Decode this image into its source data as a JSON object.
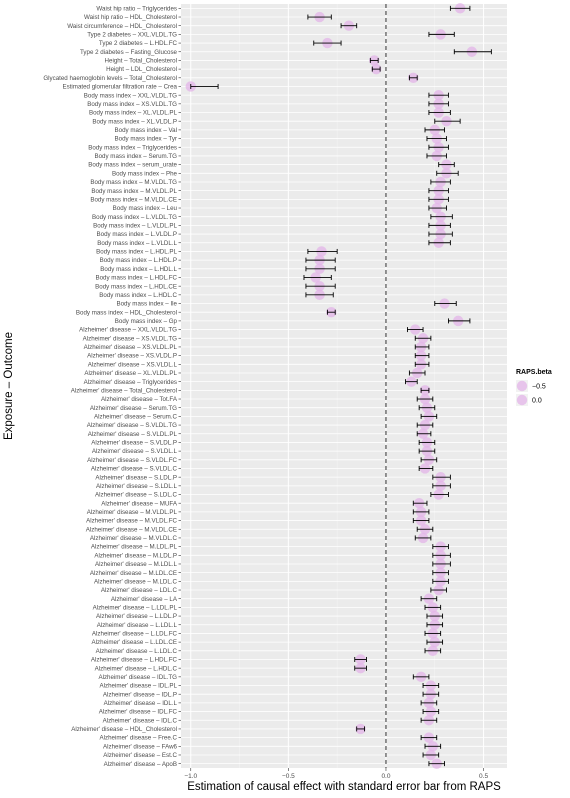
{
  "chart_data": {
    "type": "forest",
    "xlabel": "Estimation of causal effect with standard error bar from RAPS",
    "ylabel": "Exposure – Outcome",
    "xlim": [
      -1.05,
      0.62
    ],
    "xticks": [
      -1.0,
      -0.5,
      0.0,
      0.5
    ],
    "xtick_labels": [
      "−1.0",
      "−0.5",
      "0.0",
      "0.5"
    ],
    "reference_line_x": 0,
    "reference_line_style": "dashed",
    "grid": true,
    "legend": {
      "title": "RAPS.beta",
      "placement": "right",
      "entries": [
        {
          "label": "−0.5",
          "value": -0.5
        },
        {
          "label": "0.0",
          "value": 0.0
        }
      ]
    },
    "rows": [
      {
        "label": "Waist hip ratio  –  Triglycerides",
        "beta": 0.38,
        "lo": 0.33,
        "hi": 0.43
      },
      {
        "label": "Waist hip ratio  –  HDL_Cholesterol",
        "beta": -0.34,
        "lo": -0.4,
        "hi": -0.28
      },
      {
        "label": "Waist circumference  –  HDL_Cholesterol",
        "beta": -0.19,
        "lo": -0.23,
        "hi": -0.15
      },
      {
        "label": "Type 2 diabetes  –  XXL.VLDL.TG",
        "beta": 0.28,
        "lo": 0.22,
        "hi": 0.35
      },
      {
        "label": "Type 2 diabetes  –  L.HDL.FC",
        "beta": -0.3,
        "lo": -0.37,
        "hi": -0.23
      },
      {
        "label": "Type 2 diabetes  –  Fasting_Glucose",
        "beta": 0.44,
        "lo": 0.35,
        "hi": 0.54
      },
      {
        "label": "Height  –  Total_Cholesterol",
        "beta": -0.06,
        "lo": -0.08,
        "hi": -0.04
      },
      {
        "label": "Height  –  LDL_Cholesterol",
        "beta": -0.05,
        "lo": -0.07,
        "hi": -0.03
      },
      {
        "label": "Glycated haemoglobin levels  –  Total_Cholesterol",
        "beta": 0.14,
        "lo": 0.12,
        "hi": 0.16
      },
      {
        "label": "Estimated glomerular filtration rate  –  Crea",
        "beta": -1.0,
        "lo": -1.0,
        "hi": -0.86
      },
      {
        "label": "Body mass index  –  XXL.VLDL.TG",
        "beta": 0.27,
        "lo": 0.22,
        "hi": 0.32
      },
      {
        "label": "Body mass index  –  XS.VLDL.TG",
        "beta": 0.27,
        "lo": 0.22,
        "hi": 0.32
      },
      {
        "label": "Body mass index  –  XL.VLDL.PL",
        "beta": 0.27,
        "lo": 0.22,
        "hi": 0.33
      },
      {
        "label": "Body mass index  –  XL.VLDL.P",
        "beta": 0.31,
        "lo": 0.25,
        "hi": 0.38
      },
      {
        "label": "Body mass index  –  Val",
        "beta": 0.25,
        "lo": 0.2,
        "hi": 0.3
      },
      {
        "label": "Body mass index  –  Tyr",
        "beta": 0.26,
        "lo": 0.21,
        "hi": 0.31
      },
      {
        "label": "Body mass index  –  Triglycerides",
        "beta": 0.27,
        "lo": 0.22,
        "hi": 0.32
      },
      {
        "label": "Body mass index  –  Serum.TG",
        "beta": 0.26,
        "lo": 0.21,
        "hi": 0.31
      },
      {
        "label": "Body mass index  –  serum_urate",
        "beta": 0.31,
        "lo": 0.27,
        "hi": 0.35
      },
      {
        "label": "Body mass index  –  Phe",
        "beta": 0.31,
        "lo": 0.26,
        "hi": 0.37
      },
      {
        "label": "Body mass index  –  M.VLDL.TG",
        "beta": 0.28,
        "lo": 0.23,
        "hi": 0.33
      },
      {
        "label": "Body mass index  –  M.VLDL.PL",
        "beta": 0.27,
        "lo": 0.22,
        "hi": 0.32
      },
      {
        "label": "Body mass index  –  M.VLDL.CE",
        "beta": 0.27,
        "lo": 0.22,
        "hi": 0.32
      },
      {
        "label": "Body mass index  –  Leu",
        "beta": 0.26,
        "lo": 0.22,
        "hi": 0.31
      },
      {
        "label": "Body mass index  –  L.VLDL.TG",
        "beta": 0.28,
        "lo": 0.23,
        "hi": 0.34
      },
      {
        "label": "Body mass index  –  L.VLDL.PL",
        "beta": 0.28,
        "lo": 0.22,
        "hi": 0.33
      },
      {
        "label": "Body mass index  –  L.VLDL.P",
        "beta": 0.28,
        "lo": 0.22,
        "hi": 0.34
      },
      {
        "label": "Body mass index  –  L.VLDL.L",
        "beta": 0.27,
        "lo": 0.22,
        "hi": 0.33
      },
      {
        "label": "Body mass index  –  L.HDL.PL",
        "beta": -0.33,
        "lo": -0.4,
        "hi": -0.25
      },
      {
        "label": "Body mass index  –  L.HDL.P",
        "beta": -0.34,
        "lo": -0.41,
        "hi": -0.26
      },
      {
        "label": "Body mass index  –  L.HDL.L",
        "beta": -0.34,
        "lo": -0.41,
        "hi": -0.26
      },
      {
        "label": "Body mass index  –  L.HDL.FC",
        "beta": -0.36,
        "lo": -0.42,
        "hi": -0.28
      },
      {
        "label": "Body mass index  –  L.HDL.CE",
        "beta": -0.34,
        "lo": -0.41,
        "hi": -0.26
      },
      {
        "label": "Body mass index  –  L.HDL.C",
        "beta": -0.34,
        "lo": -0.41,
        "hi": -0.27
      },
      {
        "label": "Body mass index  –  Ile",
        "beta": 0.3,
        "lo": 0.25,
        "hi": 0.36
      },
      {
        "label": "Body mass index  –  HDL_Cholesterol",
        "beta": -0.28,
        "lo": -0.3,
        "hi": -0.26
      },
      {
        "label": "Body mass index  –  Gp",
        "beta": 0.37,
        "lo": 0.32,
        "hi": 0.43
      },
      {
        "label": "Alzheimer' disease  –  XXL.VLDL.TG",
        "beta": 0.15,
        "lo": 0.11,
        "hi": 0.19
      },
      {
        "label": "Alzheimer' disease  –  XS.VLDL.TG",
        "beta": 0.19,
        "lo": 0.15,
        "hi": 0.23
      },
      {
        "label": "Alzheimer' disease  –  XS.VLDL.PL",
        "beta": 0.18,
        "lo": 0.15,
        "hi": 0.22
      },
      {
        "label": "Alzheimer' disease  –  XS.VLDL.P",
        "beta": 0.18,
        "lo": 0.15,
        "hi": 0.22
      },
      {
        "label": "Alzheimer' disease  –  XS.VLDL.L",
        "beta": 0.18,
        "lo": 0.15,
        "hi": 0.22
      },
      {
        "label": "Alzheimer' disease  –  XL.VLDL.PL",
        "beta": 0.16,
        "lo": 0.12,
        "hi": 0.2
      },
      {
        "label": "Alzheimer' disease  –  Triglycerides",
        "beta": 0.13,
        "lo": 0.1,
        "hi": 0.16
      },
      {
        "label": "Alzheimer' disease  –  Total_Cholesterol",
        "beta": 0.2,
        "lo": 0.18,
        "hi": 0.22
      },
      {
        "label": "Alzheimer' disease  –  Tot.FA",
        "beta": 0.2,
        "lo": 0.16,
        "hi": 0.24
      },
      {
        "label": "Alzheimer' disease  –  Serum.TG",
        "beta": 0.21,
        "lo": 0.17,
        "hi": 0.25
      },
      {
        "label": "Alzheimer' disease  –  Serum.C",
        "beta": 0.22,
        "lo": 0.18,
        "hi": 0.26
      },
      {
        "label": "Alzheimer' disease  –  S.VLDL.TG",
        "beta": 0.2,
        "lo": 0.16,
        "hi": 0.24
      },
      {
        "label": "Alzheimer' disease  –  S.VLDL.PL",
        "beta": 0.19,
        "lo": 0.16,
        "hi": 0.23
      },
      {
        "label": "Alzheimer' disease  –  S.VLDL.P",
        "beta": 0.21,
        "lo": 0.17,
        "hi": 0.25
      },
      {
        "label": "Alzheimer' disease  –  S.VLDL.L",
        "beta": 0.21,
        "lo": 0.17,
        "hi": 0.25
      },
      {
        "label": "Alzheimer' disease  –  S.VLDL.FC",
        "beta": 0.22,
        "lo": 0.18,
        "hi": 0.26
      },
      {
        "label": "Alzheimer' disease  –  S.VLDL.C",
        "beta": 0.2,
        "lo": 0.17,
        "hi": 0.24
      },
      {
        "label": "Alzheimer' disease  –  S.LDL.P",
        "beta": 0.28,
        "lo": 0.24,
        "hi": 0.33
      },
      {
        "label": "Alzheimer' disease  –  S.LDL.L",
        "beta": 0.28,
        "lo": 0.24,
        "hi": 0.33
      },
      {
        "label": "Alzheimer' disease  –  S.LDL.C",
        "beta": 0.27,
        "lo": 0.23,
        "hi": 0.32
      },
      {
        "label": "Alzheimer' disease  –  MUFA",
        "beta": 0.17,
        "lo": 0.14,
        "hi": 0.21
      },
      {
        "label": "Alzheimer' disease  –  M.VLDL.PL",
        "beta": 0.18,
        "lo": 0.14,
        "hi": 0.22
      },
      {
        "label": "Alzheimer' disease  –  M.VLDL.FC",
        "beta": 0.18,
        "lo": 0.14,
        "hi": 0.22
      },
      {
        "label": "Alzheimer' disease  –  M.VLDL.CE",
        "beta": 0.2,
        "lo": 0.16,
        "hi": 0.24
      },
      {
        "label": "Alzheimer' disease  –  M.VLDL.C",
        "beta": 0.19,
        "lo": 0.15,
        "hi": 0.23
      },
      {
        "label": "Alzheimer' disease  –  M.LDL.PL",
        "beta": 0.28,
        "lo": 0.24,
        "hi": 0.32
      },
      {
        "label": "Alzheimer' disease  –  M.LDL.P",
        "beta": 0.28,
        "lo": 0.24,
        "hi": 0.33
      },
      {
        "label": "Alzheimer' disease  –  M.LDL.L",
        "beta": 0.28,
        "lo": 0.24,
        "hi": 0.33
      },
      {
        "label": "Alzheimer' disease  –  M.LDL.CE",
        "beta": 0.28,
        "lo": 0.24,
        "hi": 0.32
      },
      {
        "label": "Alzheimer' disease  –  M.LDL.C",
        "beta": 0.28,
        "lo": 0.24,
        "hi": 0.32
      },
      {
        "label": "Alzheimer' disease  –  LDL.C",
        "beta": 0.27,
        "lo": 0.23,
        "hi": 0.31
      },
      {
        "label": "Alzheimer' disease  –  LA",
        "beta": 0.22,
        "lo": 0.18,
        "hi": 0.26
      },
      {
        "label": "Alzheimer' disease  –  L.LDL.PL",
        "beta": 0.24,
        "lo": 0.2,
        "hi": 0.28
      },
      {
        "label": "Alzheimer' disease  –  L.LDL.P",
        "beta": 0.25,
        "lo": 0.21,
        "hi": 0.29
      },
      {
        "label": "Alzheimer' disease  –  L.LDL.L",
        "beta": 0.25,
        "lo": 0.21,
        "hi": 0.29
      },
      {
        "label": "Alzheimer' disease  –  L.LDL.FC",
        "beta": 0.24,
        "lo": 0.2,
        "hi": 0.28
      },
      {
        "label": "Alzheimer' disease  –  L.LDL.CE",
        "beta": 0.25,
        "lo": 0.21,
        "hi": 0.29
      },
      {
        "label": "Alzheimer' disease  –  L.LDL.C",
        "beta": 0.24,
        "lo": 0.2,
        "hi": 0.28
      },
      {
        "label": "Alzheimer' disease  –  L.HDL.FC",
        "beta": -0.13,
        "lo": -0.16,
        "hi": -0.1
      },
      {
        "label": "Alzheimer' disease  –  L.HDL.C",
        "beta": -0.13,
        "lo": -0.16,
        "hi": -0.1
      },
      {
        "label": "Alzheimer' disease  –  IDL.TG",
        "beta": 0.18,
        "lo": 0.14,
        "hi": 0.22
      },
      {
        "label": "Alzheimer' disease  –  IDL.PL",
        "beta": 0.23,
        "lo": 0.19,
        "hi": 0.27
      },
      {
        "label": "Alzheimer' disease  –  IDL.P",
        "beta": 0.23,
        "lo": 0.19,
        "hi": 0.27
      },
      {
        "label": "Alzheimer' disease  –  IDL.L",
        "beta": 0.22,
        "lo": 0.18,
        "hi": 0.26
      },
      {
        "label": "Alzheimer' disease  –  IDL.FC",
        "beta": 0.23,
        "lo": 0.19,
        "hi": 0.27
      },
      {
        "label": "Alzheimer' disease  –  IDL.C",
        "beta": 0.22,
        "lo": 0.18,
        "hi": 0.26
      },
      {
        "label": "Alzheimer' disease  –  HDL_Cholesterol",
        "beta": -0.13,
        "lo": -0.15,
        "hi": -0.11
      },
      {
        "label": "Alzheimer' disease  –  Free.C",
        "beta": 0.22,
        "lo": 0.18,
        "hi": 0.26
      },
      {
        "label": "Alzheimer' disease  –  FAw6",
        "beta": 0.24,
        "lo": 0.2,
        "hi": 0.28
      },
      {
        "label": "Alzheimer' disease  –  Est.C",
        "beta": 0.23,
        "lo": 0.19,
        "hi": 0.27
      },
      {
        "label": "Alzheimer' disease  –  ApoB",
        "beta": 0.26,
        "lo": 0.22,
        "hi": 0.3
      }
    ]
  }
}
